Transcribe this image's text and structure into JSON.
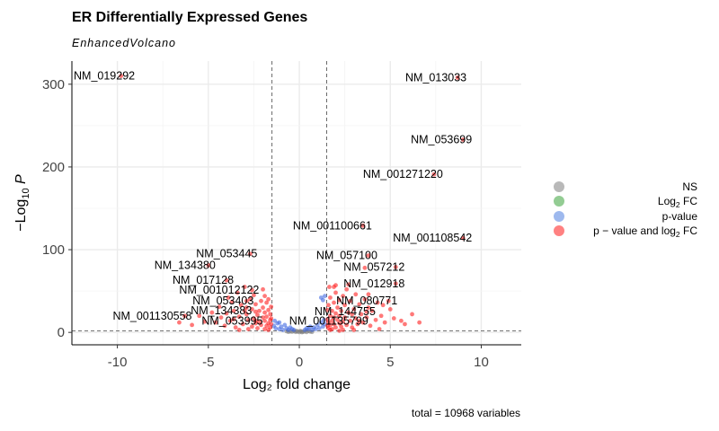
{
  "chart_data": {
    "type": "scatter",
    "title": "ER Differentially Expressed Genes",
    "subtitle": "EnhancedVolcano",
    "xlabel": "Log₂ fold change",
    "ylabel_prefix": "−Log",
    "ylabel_sub": "10",
    "ylabel_var": "P",
    "xlim": [
      -12.5,
      12.2
    ],
    "ylim": [
      -15,
      328
    ],
    "xticks": [
      -10,
      -5,
      0,
      5,
      10
    ],
    "yticks": [
      0,
      100,
      200,
      300
    ],
    "fc_cutoff": 1.5,
    "p_cutoff": 2,
    "grid": true,
    "legend_position": "right",
    "caption": "total = 10968 variables",
    "legend": [
      {
        "label": "NS",
        "color": "#7f7f7f"
      },
      {
        "label_main": "Log",
        "label_sub": "2",
        "label_tail": " FC",
        "color": "#3aa33a"
      },
      {
        "label": "p-value",
        "color": "#4f7fe0"
      },
      {
        "label_main": "p − value and log",
        "label_sub": "2",
        "label_tail": " FC",
        "color": "#ff1a1a"
      }
    ],
    "colors": {
      "ns": "#7f7f7f",
      "fc": "#3aa33a",
      "p": "#4169e1",
      "both": "#ff2020"
    },
    "labeled_points": [
      {
        "gene": "NM_019292",
        "x": -9.8,
        "y": 310
      },
      {
        "gene": "NM_013033",
        "x": 8.7,
        "y": 308
      },
      {
        "gene": "NM_053699",
        "x": 9.0,
        "y": 233
      },
      {
        "gene": "NM_001271220",
        "x": 7.4,
        "y": 191
      },
      {
        "gene": "NM_001100661",
        "x": 3.5,
        "y": 129
      },
      {
        "gene": "NM_001108542",
        "x": 9.0,
        "y": 114
      },
      {
        "gene": "NM_053445",
        "x": -2.7,
        "y": 95
      },
      {
        "gene": "NM_057100",
        "x": 3.8,
        "y": 93
      },
      {
        "gene": "NM_134380",
        "x": -5.0,
        "y": 81
      },
      {
        "gene": "NM_057212",
        "x": 5.3,
        "y": 79
      },
      {
        "gene": "NM_017128",
        "x": -4.0,
        "y": 63
      },
      {
        "gene": "NM_012918",
        "x": 5.3,
        "y": 59
      },
      {
        "gene": "NM_001012122",
        "x": -2.6,
        "y": 51
      },
      {
        "gene": "NM_053403",
        "x": -2.9,
        "y": 38
      },
      {
        "gene": "NM_080771",
        "x": 4.9,
        "y": 38
      },
      {
        "gene": "NM_134383",
        "x": -3.0,
        "y": 26
      },
      {
        "gene": "NM_144755",
        "x": 3.7,
        "y": 25
      },
      {
        "gene": "NM_001130558",
        "x": -6.3,
        "y": 20
      },
      {
        "gene": "NM_053995",
        "x": -2.4,
        "y": 14
      },
      {
        "gene": "NM_001135799",
        "x": 3.3,
        "y": 14
      }
    ],
    "points_both": [
      [
        -6.6,
        12
      ],
      [
        -5.9,
        9
      ],
      [
        -5.2,
        13
      ],
      [
        -4.8,
        24
      ],
      [
        -4.4,
        31
      ],
      [
        -4.3,
        18
      ],
      [
        -4.1,
        8
      ],
      [
        -3.9,
        42
      ],
      [
        -3.8,
        14
      ],
      [
        -3.6,
        26
      ],
      [
        -3.5,
        6
      ],
      [
        -3.4,
        48
      ],
      [
        -3.3,
        19
      ],
      [
        -3.2,
        33
      ],
      [
        -3.1,
        10
      ],
      [
        -3.0,
        55
      ],
      [
        -2.9,
        22
      ],
      [
        -2.8,
        15
      ],
      [
        -2.7,
        40
      ],
      [
        -2.6,
        7
      ],
      [
        -2.6,
        28
      ],
      [
        -2.5,
        17
      ],
      [
        -2.5,
        45
      ],
      [
        -2.4,
        11
      ],
      [
        -2.4,
        34
      ],
      [
        -2.3,
        21
      ],
      [
        -2.3,
        5
      ],
      [
        -2.2,
        26
      ],
      [
        -2.2,
        13
      ],
      [
        -2.1,
        38
      ],
      [
        -2.1,
        9
      ],
      [
        -2.0,
        18
      ],
      [
        -2.0,
        30
      ],
      [
        -1.9,
        4
      ],
      [
        -1.9,
        14
      ],
      [
        -1.9,
        24
      ],
      [
        -1.8,
        8
      ],
      [
        -1.8,
        36
      ],
      [
        -1.8,
        19
      ],
      [
        -1.7,
        11
      ],
      [
        -1.7,
        27
      ],
      [
        -1.7,
        3
      ],
      [
        -1.6,
        15
      ],
      [
        -1.6,
        22
      ],
      [
        -1.6,
        6
      ],
      [
        -1.55,
        10
      ],
      [
        -1.55,
        31
      ],
      [
        -1.55,
        17
      ],
      [
        -1.9,
        44
      ],
      [
        -2.0,
        52
      ],
      [
        -3.7,
        37
      ],
      [
        -4.6,
        12
      ],
      [
        -5.5,
        20
      ],
      [
        -3.3,
        3
      ],
      [
        -2.8,
        4
      ],
      [
        -4.0,
        23
      ],
      [
        -2.9,
        30
      ],
      [
        -3.6,
        16
      ],
      [
        -2.4,
        25
      ],
      [
        -1.7,
        40
      ],
      [
        1.55,
        8
      ],
      [
        1.55,
        16
      ],
      [
        1.55,
        27
      ],
      [
        1.6,
        5
      ],
      [
        1.6,
        12
      ],
      [
        1.6,
        33
      ],
      [
        1.7,
        20
      ],
      [
        1.7,
        9
      ],
      [
        1.7,
        42
      ],
      [
        1.8,
        14
      ],
      [
        1.8,
        26
      ],
      [
        1.8,
        4
      ],
      [
        1.9,
        18
      ],
      [
        1.9,
        36
      ],
      [
        1.9,
        10
      ],
      [
        2.0,
        23
      ],
      [
        2.0,
        48
      ],
      [
        2.0,
        6
      ],
      [
        2.1,
        15
      ],
      [
        2.1,
        30
      ],
      [
        2.2,
        11
      ],
      [
        2.2,
        39
      ],
      [
        2.2,
        20
      ],
      [
        2.3,
        7
      ],
      [
        2.3,
        26
      ],
      [
        2.4,
        13
      ],
      [
        2.4,
        44
      ],
      [
        2.5,
        18
      ],
      [
        2.5,
        33
      ],
      [
        2.6,
        9
      ],
      [
        2.6,
        52
      ],
      [
        2.7,
        24
      ],
      [
        2.8,
        14
      ],
      [
        2.8,
        38
      ],
      [
        2.9,
        6
      ],
      [
        3.0,
        28
      ],
      [
        3.1,
        17
      ],
      [
        3.1,
        46
      ],
      [
        3.2,
        10
      ],
      [
        3.3,
        34
      ],
      [
        3.4,
        22
      ],
      [
        3.5,
        12
      ],
      [
        3.6,
        40
      ],
      [
        3.7,
        18
      ],
      [
        3.8,
        30
      ],
      [
        3.9,
        8
      ],
      [
        4.0,
        26
      ],
      [
        4.2,
        15
      ],
      [
        4.3,
        36
      ],
      [
        4.5,
        20
      ],
      [
        4.7,
        12
      ],
      [
        5.0,
        28
      ],
      [
        5.2,
        17
      ],
      [
        5.6,
        14
      ],
      [
        5.8,
        10
      ],
      [
        6.2,
        22
      ],
      [
        6.6,
        12
      ],
      [
        2.0,
        57
      ],
      [
        1.9,
        55
      ],
      [
        2.7,
        58
      ],
      [
        3.6,
        78
      ],
      [
        2.4,
        3
      ],
      [
        1.7,
        3
      ],
      [
        2.2,
        2
      ],
      [
        3.0,
        3
      ],
      [
        4.4,
        4
      ],
      [
        1.65,
        55
      ],
      [
        2.9,
        22
      ],
      [
        3.8,
        46
      ],
      [
        4.6,
        33
      ]
    ],
    "points_p": [
      [
        -1.4,
        8
      ],
      [
        -1.3,
        5
      ],
      [
        -1.2,
        11
      ],
      [
        -1.1,
        4
      ],
      [
        -1.0,
        7
      ],
      [
        -0.9,
        3
      ],
      [
        -0.8,
        9
      ],
      [
        -0.7,
        5
      ],
      [
        -0.6,
        3
      ],
      [
        -0.5,
        6
      ],
      [
        -0.4,
        4
      ],
      [
        -0.3,
        3
      ],
      [
        0.3,
        3
      ],
      [
        0.4,
        5
      ],
      [
        0.5,
        4
      ],
      [
        0.6,
        7
      ],
      [
        0.7,
        3
      ],
      [
        0.8,
        6
      ],
      [
        0.9,
        4
      ],
      [
        1.0,
        9
      ],
      [
        1.1,
        5
      ],
      [
        1.2,
        12
      ],
      [
        1.3,
        7
      ],
      [
        1.4,
        10
      ],
      [
        1.2,
        42
      ],
      [
        1.4,
        44
      ],
      [
        1.3,
        39
      ],
      [
        -1.1,
        12
      ],
      [
        -1.35,
        14
      ],
      [
        1.35,
        15
      ]
    ],
    "points_ns": [
      [
        -0.5,
        1.2
      ],
      [
        -0.4,
        0.8
      ],
      [
        -0.3,
        1.5
      ],
      [
        -0.2,
        0.5
      ],
      [
        -0.1,
        1.0
      ],
      [
        0.0,
        0.3
      ],
      [
        0.1,
        1.3
      ],
      [
        0.2,
        0.7
      ],
      [
        0.3,
        1.1
      ],
      [
        0.4,
        0.4
      ],
      [
        0.5,
        1.6
      ],
      [
        0.6,
        0.9
      ],
      [
        -0.6,
        0.6
      ],
      [
        -0.15,
        1.8
      ],
      [
        0.15,
        0.2
      ],
      [
        0.7,
        0.5
      ],
      [
        -0.7,
        1.4
      ],
      [
        0.05,
        1.7
      ]
    ]
  }
}
